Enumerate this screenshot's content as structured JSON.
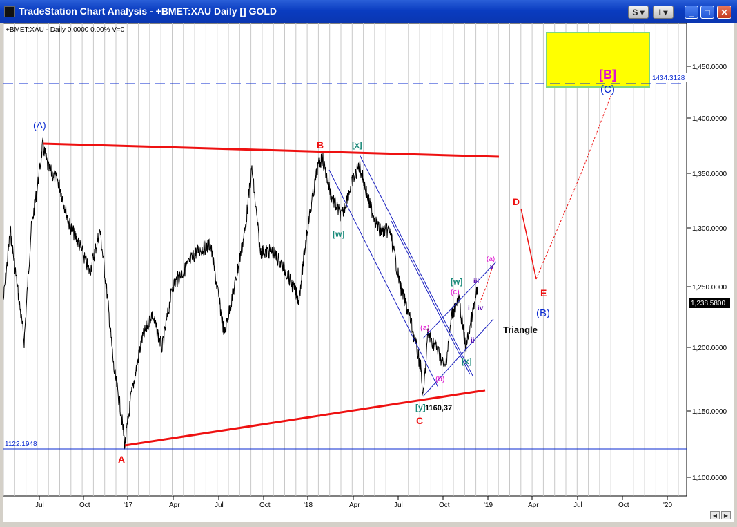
{
  "window": {
    "title": "TradeStation Chart Analysis - +BMET:XAU Daily [] GOLD",
    "buttons": {
      "s": "S",
      "i": "I",
      "minimize": "_",
      "maximize": "□",
      "close": "✕"
    }
  },
  "chart": {
    "info_label": "+BMET:XAU - Daily  0.0000  0.00%  V=0",
    "price_labels": [
      "1,450.0000",
      "1,400.0000",
      "1,350.0000",
      "1,300.0000",
      "1,250.0000",
      "1,200.0000",
      "1,150.0000",
      "1,100.0000"
    ],
    "date_labels": [
      "Jul",
      "Oct",
      "'17",
      "Apr",
      "Jul",
      "Oct",
      "'18",
      "Apr",
      "Jul",
      "Oct",
      "'19",
      "Apr",
      "Jul",
      "Oct",
      "'20"
    ],
    "last_price": "1,238.5800",
    "dashed_level": "1434.3128",
    "low_level": "1122.1948",
    "low_value": "1160,37",
    "wave_labels": {
      "A_paren": "(A)",
      "A": "A",
      "B": "B",
      "C": "C",
      "D": "D",
      "E": "E",
      "B_paren": "(B)",
      "C_paren": "(C)",
      "B_bracket": "[B]",
      "x1": "[x]",
      "w1": "[w]",
      "w2": "[w]",
      "x2": "[x]",
      "y": "[y]",
      "a_small1": "(a)",
      "b_small": "(b)",
      "c_small": "(c)",
      "a_small2": "(a)",
      "i": "i",
      "ii": "ii",
      "iii": "iii",
      "iv": "iv",
      "v": "v",
      "triangle": "Triangle"
    },
    "colors": {
      "red": "#ee1111",
      "blue": "#0a2ad0",
      "teal": "#1a8a7a",
      "magenta": "#e010d0",
      "purple": "#6010b0",
      "yellow": "#ffff00",
      "green": "#8ee08e"
    }
  }
}
